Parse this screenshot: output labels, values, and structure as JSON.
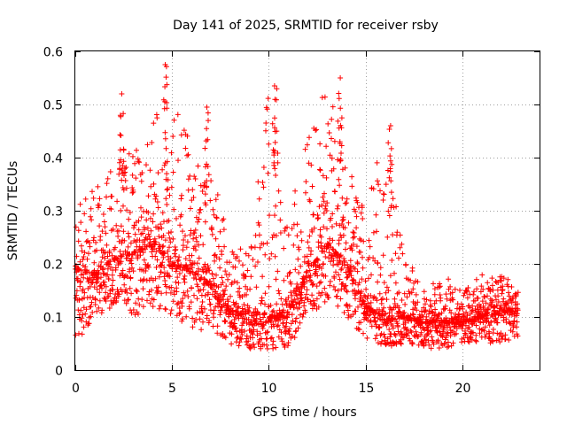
{
  "chart_data": {
    "type": "scatter",
    "title": "Day 141 of 2025, SRMTID for receiver rsby",
    "xlabel": "GPS time / hours",
    "ylabel": "SRMTID / TECUs",
    "xlim": [
      0,
      24
    ],
    "ylim": [
      0,
      0.6
    ],
    "xticks": [
      "0",
      "5",
      "10",
      "15",
      "20"
    ],
    "yticks": [
      "0",
      "0.1",
      "0.2",
      "0.3",
      "0.4",
      "0.5",
      "0.6"
    ],
    "marker": "plus",
    "grid": true,
    "colors": {
      "points": "#ff0000",
      "grid": "#a0a0a0",
      "axes": "#000000"
    },
    "series": [
      {
        "name": "SRMTID",
        "envelope_description": "dense cloud of several thousand samples; typical (median) level and upper/lower extent per hour",
        "hours": [
          0,
          1,
          2,
          3,
          4,
          5,
          6,
          7,
          8,
          9,
          10,
          11,
          12,
          13,
          14,
          15,
          16,
          17,
          18,
          19,
          20,
          21,
          22,
          22.9
        ],
        "median": [
          0.19,
          0.18,
          0.21,
          0.22,
          0.24,
          0.2,
          0.19,
          0.16,
          0.11,
          0.11,
          0.1,
          0.11,
          0.18,
          0.24,
          0.2,
          0.12,
          0.1,
          0.1,
          0.09,
          0.09,
          0.09,
          0.1,
          0.11,
          0.11
        ],
        "upper": [
          0.3,
          0.35,
          0.38,
          0.42,
          0.46,
          0.58,
          0.42,
          0.38,
          0.25,
          0.22,
          0.54,
          0.28,
          0.44,
          0.55,
          0.4,
          0.3,
          0.46,
          0.22,
          0.16,
          0.18,
          0.16,
          0.18,
          0.18,
          0.16
        ],
        "lower": [
          0.05,
          0.1,
          0.12,
          0.1,
          0.12,
          0.1,
          0.08,
          0.07,
          0.05,
          0.04,
          0.04,
          0.04,
          0.1,
          0.12,
          0.1,
          0.06,
          0.04,
          0.05,
          0.04,
          0.04,
          0.05,
          0.05,
          0.05,
          0.06
        ],
        "peaks": [
          {
            "x": 2.4,
            "y": 0.52
          },
          {
            "x": 4.65,
            "y": 0.575
          },
          {
            "x": 6.8,
            "y": 0.495
          },
          {
            "x": 10.3,
            "y": 0.535
          },
          {
            "x": 13.7,
            "y": 0.55
          },
          {
            "x": 16.3,
            "y": 0.46
          }
        ]
      }
    ]
  }
}
